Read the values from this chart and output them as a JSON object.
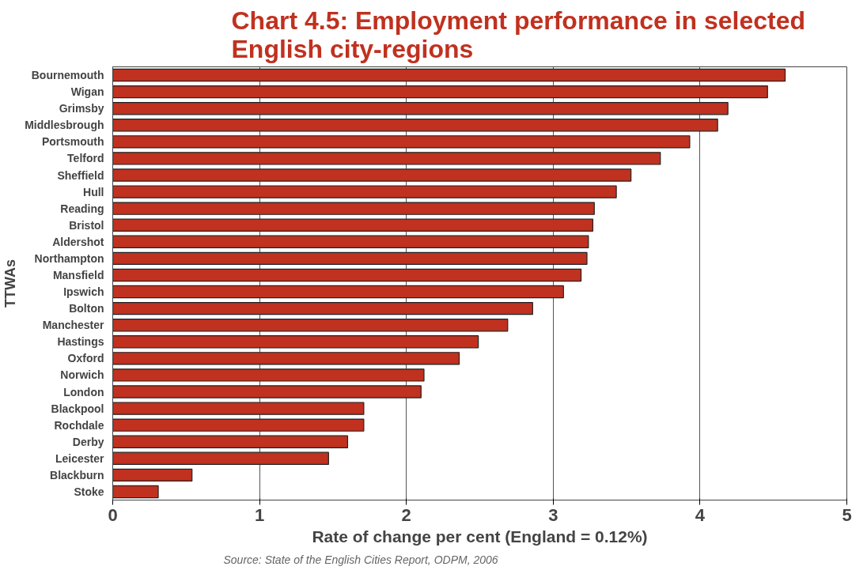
{
  "chart_data": {
    "type": "bar",
    "orientation": "horizontal",
    "title": "Chart 4.5: Employment performance in selected English city-regions",
    "xlabel": "Rate of change per cent (England = 0.12%)",
    "ylabel": "TTWAs",
    "categories": [
      "Bournemouth",
      "Wigan",
      "Grimsby",
      "Middlesbrough",
      "Portsmouth",
      "Telford",
      "Sheffield",
      "Hull",
      "Reading",
      "Bristol",
      "Aldershot",
      "Northampton",
      "Mansfield",
      "Ipswich",
      "Bolton",
      "Manchester",
      "Hastings",
      "Oxford",
      "Norwich",
      "London",
      "Blackpool",
      "Rochdale",
      "Derby",
      "Leicester",
      "Blackburn",
      "Stoke"
    ],
    "values": [
      4.58,
      4.46,
      4.19,
      4.12,
      3.93,
      3.73,
      3.53,
      3.43,
      3.28,
      3.27,
      3.24,
      3.23,
      3.19,
      3.07,
      2.86,
      2.69,
      2.49,
      2.36,
      2.12,
      2.1,
      1.71,
      1.71,
      1.6,
      1.47,
      0.54,
      0.31
    ],
    "color": "#c0311f",
    "xlim": [
      0,
      5
    ],
    "xticks": [
      0,
      1,
      2,
      3,
      4,
      5
    ],
    "grid": "x",
    "annotations": [
      "Source: State of the English Cities Report, ODPM, 2006"
    ]
  }
}
